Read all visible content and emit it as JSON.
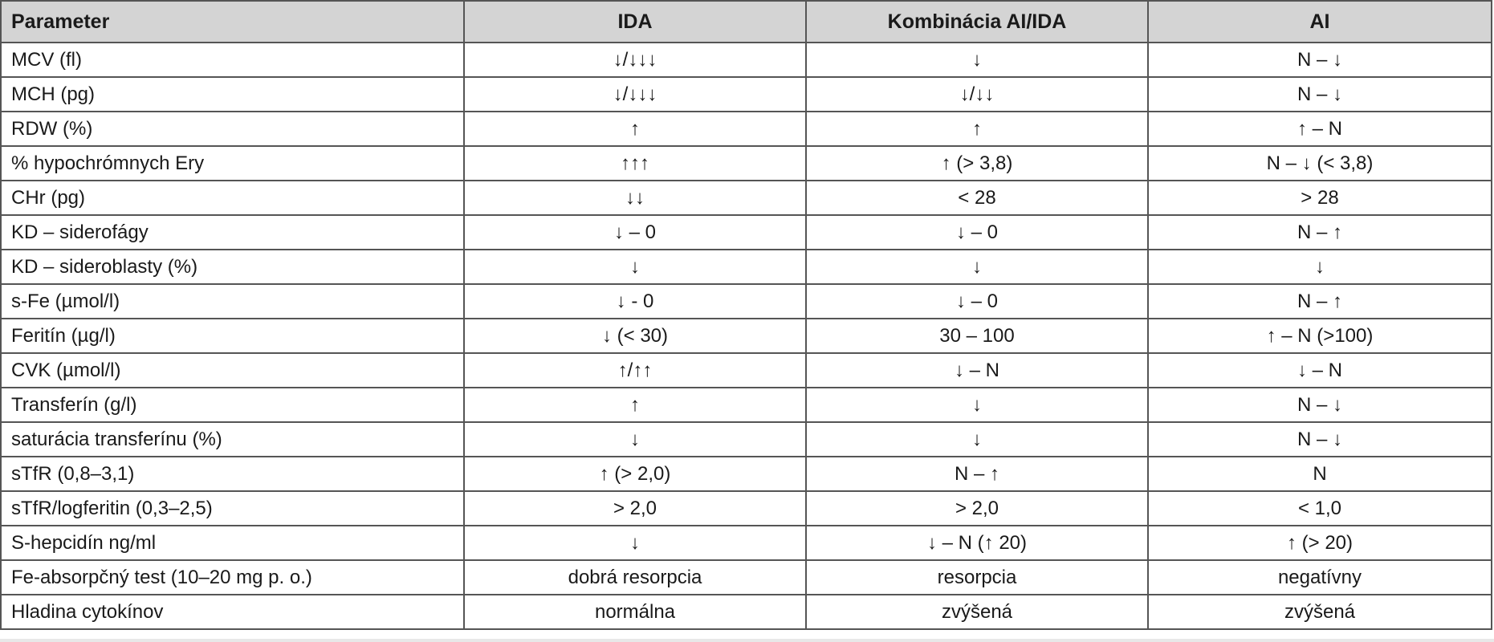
{
  "table": {
    "headers": [
      "Parameter",
      "IDA",
      "Kombinácia AI/IDA",
      "AI"
    ],
    "rows": [
      [
        "MCV (fl)",
        "↓/↓↓↓",
        "↓",
        "N – ↓"
      ],
      [
        "MCH (pg)",
        "↓/↓↓↓",
        "↓/↓↓",
        "N – ↓"
      ],
      [
        "RDW (%)",
        "↑",
        "↑",
        "↑ – N"
      ],
      [
        "% hypochrómnych Ery",
        "↑↑↑",
        "↑ (> 3,8)",
        "N – ↓ (< 3,8)"
      ],
      [
        "CHr (pg)",
        "↓↓",
        "< 28",
        "> 28"
      ],
      [
        "KD – siderofágy",
        "↓ – 0",
        "↓ – 0",
        "N – ↑"
      ],
      [
        "KD – sideroblasty (%)",
        "↓",
        "↓",
        "↓"
      ],
      [
        "s-Fe (µmol/l)",
        "↓ - 0",
        "↓ – 0",
        "N – ↑"
      ],
      [
        "Feritín (µg/l)",
        "↓ (< 30)",
        "30 – 100",
        "↑ – N (>100)"
      ],
      [
        "CVK (µmol/l)",
        "↑/↑↑",
        "↓ – N",
        "↓ – N"
      ],
      [
        "Transferín (g/l)",
        "↑",
        "↓",
        "N – ↓"
      ],
      [
        "saturácia transferínu (%)",
        "↓",
        "↓",
        "N – ↓"
      ],
      [
        "sTfR (0,8–3,1)",
        "↑ (> 2,0)",
        "N – ↑",
        "N"
      ],
      [
        "sTfR/logferitin (0,3–2,5)",
        "> 2,0",
        "> 2,0",
        "< 1,0"
      ],
      [
        "S-hepcidín ng/ml",
        "↓",
        "↓ – N (↑ 20)",
        "↑ (> 20)"
      ],
      [
        "Fe-absorpčný test (10–20 mg p. o.)",
        "dobrá resorpcia",
        "resorpcia",
        "negatívny"
      ],
      [
        "Hladina cytokínov",
        "normálna",
        "zvýšená",
        "zvýšená"
      ]
    ]
  }
}
